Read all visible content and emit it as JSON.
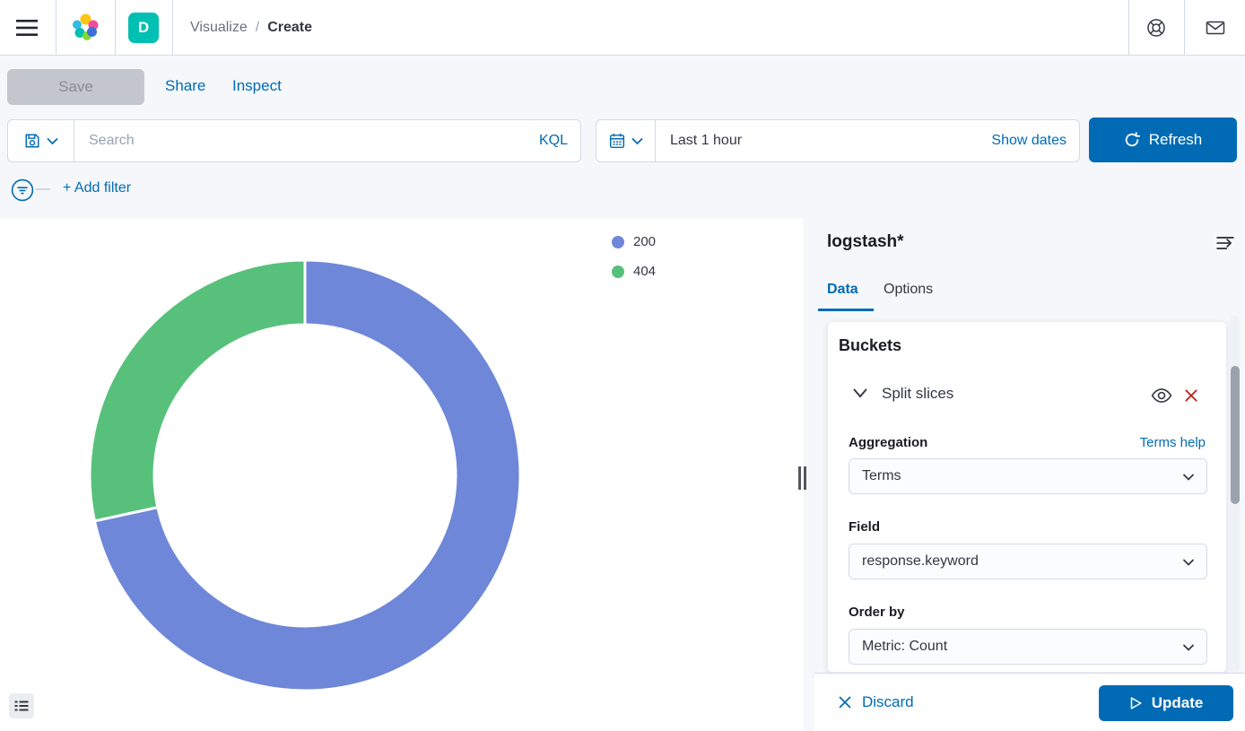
{
  "colors": {
    "primary": "#006bb4",
    "danger": "#bd271e",
    "space_badge": "#00bfb3",
    "text": "#343741",
    "text_subdued": "#69707d",
    "border": "#d3dae6",
    "panel_bg": "#f5f7fa",
    "disabled_bg": "#c3c7cd",
    "disabled_text": "#878d96"
  },
  "header": {
    "space_initial": "D",
    "breadcrumb": {
      "parent": "Visualize",
      "separator": "/",
      "current": "Create"
    }
  },
  "toolbar": {
    "save": "Save",
    "share": "Share",
    "inspect": "Inspect"
  },
  "search_bar": {
    "placeholder": "Search",
    "query_language": "KQL"
  },
  "time_picker": {
    "value": "Last 1 hour",
    "show_dates": "Show dates",
    "refresh": "Refresh"
  },
  "filter_bar": {
    "add_filter": "+ Add filter"
  },
  "editor": {
    "index_pattern": "logstash*",
    "tabs": {
      "data": "Data",
      "options": "Options"
    },
    "buckets": {
      "heading": "Buckets",
      "split_slices": "Split slices",
      "aggregation_label": "Aggregation",
      "aggregation_help": "Terms help",
      "aggregation_value": "Terms",
      "field_label": "Field",
      "field_value": "response.keyword",
      "order_by_label": "Order by",
      "order_by_value": "Metric: Count"
    },
    "footer": {
      "discard": "Discard",
      "update": "Update"
    }
  },
  "chart_data": {
    "type": "pie",
    "subtype": "donut",
    "categories": [
      "200",
      "404"
    ],
    "values": [
      71.6,
      28.4
    ],
    "value_unit": "percent_of_count",
    "colors": [
      "#6f87d8",
      "#57c17b"
    ],
    "start_angle_deg": 0,
    "outer_radius_px": 240,
    "inner_radius_px": 168,
    "slice_gap_color": "#ffffff",
    "legend_position": "top-right",
    "title": ""
  },
  "icons": {
    "hamburger-icon": "three horizontal bars",
    "elastic-logo": "cluster of colored circles",
    "help-icon": "life ring",
    "mail-icon": "envelope",
    "save-query-icon": "floppy disk",
    "chevron-down-icon": "v",
    "calendar-icon": "calendar grid",
    "refresh-icon": "circular arrow",
    "filter-icon": "funnel lines in circle",
    "collapse-panel-icon": "lines with right arrow",
    "eye-icon": "eye outline",
    "remove-icon": "x",
    "discard-icon": "x",
    "play-icon": "hollow triangle",
    "legend-toggle-icon": "bulleted list",
    "resizer-icon": "double vertical bar"
  }
}
